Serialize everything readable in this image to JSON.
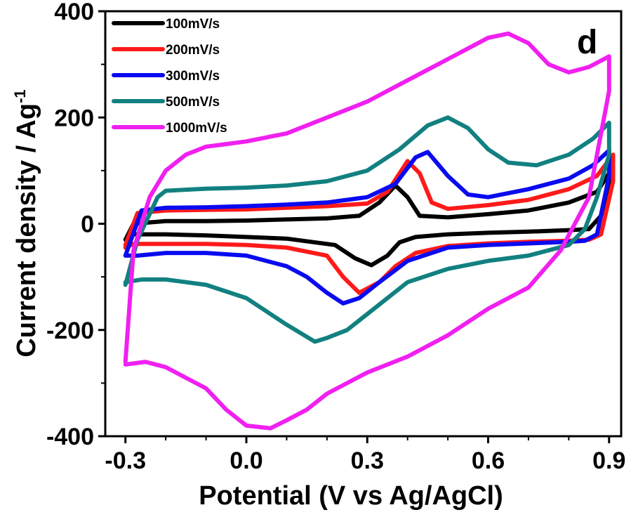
{
  "chart_data": {
    "type": "line",
    "title": "",
    "panel_label": "d",
    "xlabel": "Potential (V vs Ag/AgCl)",
    "ylabel": "Current density / Ag",
    "ylabel_superscript": "-1",
    "xlim": [
      -0.35,
      0.93
    ],
    "ylim": [
      -400,
      400
    ],
    "xticks": [
      -0.3,
      0.0,
      0.3,
      0.6,
      0.9
    ],
    "xtick_labels": [
      "-0.3",
      "0.0",
      "0.3",
      "0.6",
      "0.9"
    ],
    "yticks": [
      -400,
      -200,
      0,
      200,
      400
    ],
    "ytick_labels": [
      "-400",
      "-200",
      "0",
      "200",
      "400"
    ],
    "grid": false,
    "legend_position": "top-left",
    "series": [
      {
        "name": "100mV/s",
        "color": "#000000",
        "x": [
          -0.3,
          -0.28,
          -0.2,
          -0.1,
          0.0,
          0.1,
          0.2,
          0.28,
          0.33,
          0.37,
          0.4,
          0.43,
          0.5,
          0.6,
          0.7,
          0.8,
          0.87,
          0.9,
          0.9,
          0.88,
          0.85,
          0.8,
          0.7,
          0.6,
          0.5,
          0.42,
          0.38,
          0.35,
          0.31,
          0.27,
          0.22,
          0.1,
          0.0,
          -0.1,
          -0.2,
          -0.28,
          -0.3,
          -0.3
        ],
        "y": [
          -30,
          0,
          5,
          5,
          6,
          8,
          10,
          15,
          40,
          72,
          50,
          15,
          12,
          18,
          25,
          40,
          60,
          95,
          50,
          15,
          -10,
          -12,
          -15,
          -17,
          -20,
          -25,
          -35,
          -60,
          -78,
          -65,
          -40,
          -28,
          -25,
          -22,
          -20,
          -20,
          -30,
          -30
        ]
      },
      {
        "name": "200mV/s",
        "color": "#ff1a1a",
        "x": [
          -0.3,
          -0.27,
          -0.2,
          -0.1,
          0.0,
          0.1,
          0.2,
          0.3,
          0.35,
          0.4,
          0.43,
          0.46,
          0.5,
          0.6,
          0.7,
          0.8,
          0.87,
          0.91,
          0.91,
          0.88,
          0.85,
          0.8,
          0.7,
          0.6,
          0.5,
          0.42,
          0.37,
          0.33,
          0.28,
          0.24,
          0.2,
          0.1,
          0.0,
          -0.1,
          -0.2,
          -0.28,
          -0.3,
          -0.3
        ],
        "y": [
          -40,
          20,
          25,
          26,
          27,
          30,
          33,
          38,
          60,
          118,
          95,
          40,
          28,
          35,
          45,
          65,
          90,
          130,
          80,
          -20,
          -30,
          -32,
          -34,
          -37,
          -42,
          -55,
          -80,
          -110,
          -130,
          -100,
          -60,
          -45,
          -40,
          -38,
          -38,
          -38,
          -45,
          -45
        ]
      },
      {
        "name": "300mV/s",
        "color": "#0a0af0",
        "x": [
          -0.3,
          -0.26,
          -0.2,
          -0.1,
          0.0,
          0.1,
          0.2,
          0.3,
          0.37,
          0.42,
          0.45,
          0.5,
          0.55,
          0.6,
          0.7,
          0.8,
          0.86,
          0.9,
          0.9,
          0.87,
          0.84,
          0.8,
          0.7,
          0.6,
          0.5,
          0.4,
          0.33,
          0.28,
          0.24,
          0.2,
          0.15,
          0.1,
          0.0,
          -0.1,
          -0.2,
          -0.27,
          -0.3,
          -0.3
        ],
        "y": [
          -60,
          25,
          30,
          31,
          33,
          36,
          40,
          50,
          75,
          125,
          135,
          90,
          55,
          50,
          65,
          85,
          110,
          138,
          90,
          -20,
          -32,
          -34,
          -37,
          -40,
          -45,
          -70,
          -110,
          -140,
          -150,
          -130,
          -100,
          -80,
          -60,
          -55,
          -55,
          -60,
          -60,
          -60
        ]
      },
      {
        "name": "500mV/s",
        "color": "#128080",
        "x": [
          -0.3,
          -0.27,
          -0.22,
          -0.2,
          -0.1,
          0.0,
          0.1,
          0.2,
          0.3,
          0.38,
          0.45,
          0.5,
          0.55,
          0.6,
          0.65,
          0.72,
          0.8,
          0.86,
          0.9,
          0.9,
          0.87,
          0.84,
          0.8,
          0.7,
          0.6,
          0.5,
          0.4,
          0.3,
          0.25,
          0.2,
          0.17,
          0.1,
          0.0,
          -0.1,
          -0.2,
          -0.26,
          -0.3
        ],
        "y": [
          -115,
          -30,
          50,
          62,
          66,
          68,
          72,
          80,
          100,
          140,
          185,
          200,
          180,
          140,
          115,
          110,
          130,
          160,
          190,
          130,
          50,
          -10,
          -40,
          -60,
          -70,
          -85,
          -110,
          -170,
          -200,
          -215,
          -222,
          -190,
          -140,
          -115,
          -105,
          -105,
          -110
        ]
      },
      {
        "name": "1000mV/s",
        "color": "#f020f0",
        "x": [
          -0.3,
          -0.28,
          -0.24,
          -0.2,
          -0.15,
          -0.1,
          -0.05,
          0.0,
          0.1,
          0.2,
          0.3,
          0.4,
          0.5,
          0.6,
          0.65,
          0.7,
          0.75,
          0.8,
          0.85,
          0.9,
          0.9,
          0.85,
          0.78,
          0.7,
          0.6,
          0.5,
          0.4,
          0.3,
          0.2,
          0.15,
          0.1,
          0.06,
          0.0,
          -0.05,
          -0.1,
          -0.2,
          -0.25,
          -0.3
        ],
        "y": [
          -260,
          -50,
          50,
          100,
          130,
          145,
          150,
          155,
          170,
          200,
          230,
          270,
          310,
          350,
          358,
          340,
          300,
          285,
          295,
          315,
          250,
          50,
          -50,
          -120,
          -160,
          -210,
          -250,
          -280,
          -320,
          -350,
          -370,
          -385,
          -380,
          -350,
          -310,
          -270,
          -260,
          -265
        ]
      }
    ]
  }
}
